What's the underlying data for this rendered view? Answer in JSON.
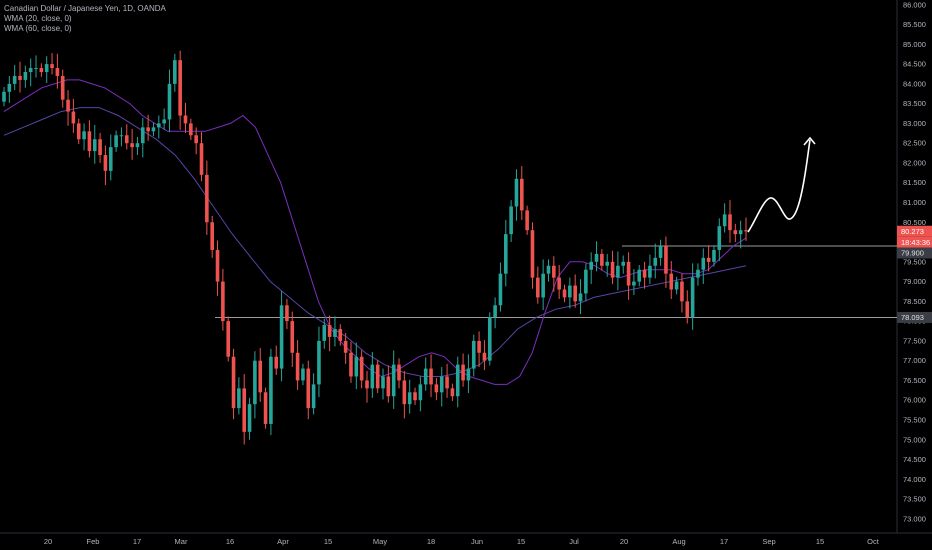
{
  "legend": {
    "title": "Canadian Dollar / Japanese Yen, 1D, OANDA",
    "wma20": "WMA (20, close, 0)",
    "wma60": "WMA (60, close, 0)"
  },
  "colors": {
    "background": "#000000",
    "up": "#26a69a",
    "down": "#ef5350",
    "wma20": "#7b2fbf",
    "wma60": "#5b43a8",
    "hline": "#9a9a9a",
    "price_tag": "#ef5350",
    "axis_text": "#b2b5be"
  },
  "chart_data": {
    "type": "candlestick",
    "y_ticks": [
      "73.000",
      "73.500",
      "74.000",
      "74.500",
      "75.000",
      "75.500",
      "76.000",
      "76.500",
      "77.000",
      "77.500",
      "78.000",
      "78.500",
      "79.000",
      "79.500",
      "80.000",
      "80.500",
      "81.000",
      "81.500",
      "82.000",
      "82.500",
      "83.000",
      "83.500",
      "84.000",
      "84.500",
      "85.000",
      "85.500",
      "86.000"
    ],
    "ylim": [
      72.92,
      86.02
    ],
    "x_ticks": [
      "20",
      "Feb",
      "17",
      "Mar",
      "16",
      "Apr",
      "15",
      "May",
      "18",
      "Jun",
      "15",
      "Jul",
      "20",
      "Aug",
      "17",
      "Sep",
      "15",
      "Oct"
    ],
    "price_tags": {
      "last_price": "80.273",
      "countdown": "18:43:36",
      "resistance": "79.900",
      "support": "78.093"
    },
    "horizontal_lines": [
      {
        "name": "resistance",
        "price": 79.9
      },
      {
        "name": "support",
        "price": 78.093
      }
    ],
    "closes": [
      83.8,
      84.0,
      84.2,
      84.1,
      84.3,
      84.4,
      84.4,
      84.3,
      84.5,
      84.4,
      84.2,
      83.6,
      83.3,
      83.0,
      82.6,
      82.8,
      82.3,
      82.6,
      82.2,
      81.8,
      82.4,
      82.7,
      82.7,
      82.5,
      82.4,
      82.5,
      82.9,
      82.8,
      82.9,
      83.0,
      83.1,
      84.0,
      84.6,
      83.2,
      83.0,
      82.7,
      82.5,
      81.7,
      80.5,
      79.8,
      79.0,
      78.0,
      77.1,
      75.8,
      76.3,
      75.2,
      75.9,
      77.0,
      76.2,
      75.4,
      77.1,
      76.8,
      78.4,
      78.0,
      77.2,
      76.5,
      76.8,
      75.8,
      76.4,
      77.5,
      77.9,
      77.6,
      77.8,
      77.5,
      77.2,
      76.6,
      77.1,
      76.5,
      76.3,
      76.9,
      76.3,
      76.6,
      76.1,
      76.9,
      76.5,
      75.9,
      76.2,
      76.0,
      76.4,
      76.8,
      76.4,
      76.2,
      76.6,
      76.3,
      76.1,
      76.9,
      76.5,
      76.8,
      77.5,
      77.2,
      77.0,
      78.1,
      78.4,
      79.2,
      80.2,
      80.9,
      81.6,
      80.8,
      80.3,
      79.1,
      78.6,
      79.2,
      79.4,
      79.1,
      78.8,
      78.6,
      78.9,
      78.5,
      78.7,
      79.3,
      79.5,
      79.7,
      79.4,
      79.5,
      79.1,
      79.4,
      79.5,
      78.9,
      79.0,
      79.3,
      79.1,
      79.4,
      79.6,
      79.9,
      79.2,
      78.8,
      79.0,
      78.5,
      78.1,
      79.1,
      79.3,
      79.6,
      79.5,
      79.8,
      80.4,
      80.7,
      80.3,
      80.2,
      80.3,
      80.27
    ],
    "wma20": [
      83.3,
      83.5,
      83.7,
      83.9,
      84.0,
      84.1,
      84.1,
      84.0,
      83.9,
      83.7,
      83.5,
      83.2,
      83.0,
      82.8,
      82.8,
      82.8,
      82.8,
      82.9,
      83.0,
      83.2,
      82.9,
      82.2,
      81.5,
      80.5,
      79.5,
      78.5,
      77.8,
      77.4,
      77.1,
      76.8,
      76.6,
      76.7,
      76.9,
      77.1,
      77.2,
      77.1,
      76.8,
      76.6,
      76.5,
      76.4,
      76.4,
      76.6,
      77.2,
      78.2,
      79.1,
      79.5,
      79.5,
      79.4,
      79.2,
      79.1,
      79.2,
      79.3,
      79.3,
      79.3,
      79.2,
      79.2,
      79.3,
      79.6,
      79.9,
      80.1
    ],
    "wma60": [
      82.7,
      82.9,
      83.1,
      83.3,
      83.4,
      83.4,
      83.2,
      82.9,
      82.6,
      82.2,
      81.6,
      80.9,
      80.2,
      79.6,
      79.0,
      78.6,
      78.2,
      77.9,
      77.6,
      77.2,
      76.9,
      76.7,
      76.6,
      76.6,
      76.7,
      76.9,
      77.3,
      77.8,
      78.1,
      78.3,
      78.4,
      78.6,
      78.7,
      78.8,
      78.9,
      79.0,
      79.1,
      79.2,
      79.3,
      79.4
    ],
    "annotation": "hand-drawn arrow pointing up",
    "grid": false
  }
}
